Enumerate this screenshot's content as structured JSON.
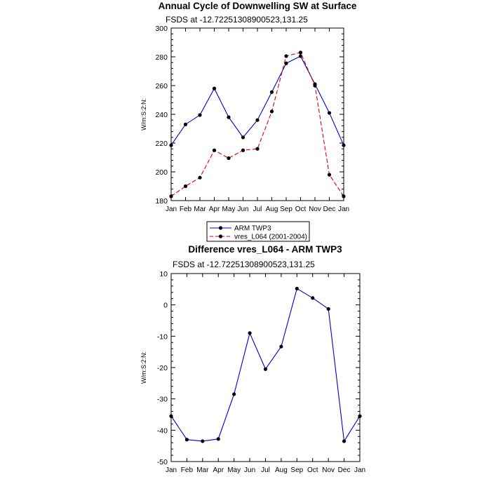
{
  "chart_data": [
    {
      "type": "line",
      "title": "Annual Cycle of Downwelling SW at Surface",
      "subtitle": "FSDS at -12.72251308900523,131.25",
      "ylabel": "W/m:S:2:N:",
      "xlabel": "",
      "categories": [
        "Jan",
        "Feb",
        "Mar",
        "Apr",
        "May",
        "Jun",
        "Jul",
        "Aug",
        "Sep",
        "Oct",
        "Nov",
        "Dec",
        "Jan"
      ],
      "ylim": [
        180,
        300
      ],
      "yticks": [
        180,
        200,
        220,
        240,
        260,
        280,
        300
      ],
      "legend_position": "bottom-center",
      "series": [
        {
          "name": "ARM TWP3",
          "color": "#0000cc",
          "dash": "solid",
          "values": [
            218.5,
            233,
            239.5,
            258,
            238,
            224,
            236,
            255.5,
            275.5,
            280.5,
            261,
            241,
            218.5
          ]
        },
        {
          "name": "vres_L064 (2001-2004)",
          "color": "#dd0000",
          "dash": "dashed",
          "values": [
            183,
            190,
            196,
            215,
            209.5,
            215,
            216,
            242,
            280.5,
            283,
            260,
            198,
            183
          ]
        }
      ]
    },
    {
      "type": "line",
      "title": "Difference vres_L064 - ARM TWP3",
      "subtitle": "FSDS at -12.72251308900523,131.25",
      "ylabel": "W/m:S:2:N:",
      "xlabel": "",
      "categories": [
        "Jan",
        "Feb",
        "Mar",
        "Apr",
        "May",
        "Jun",
        "Jul",
        "Aug",
        "Sep",
        "Oct",
        "Nov",
        "Dec",
        "Jan"
      ],
      "ylim": [
        -50,
        10
      ],
      "yticks": [
        -50,
        -40,
        -30,
        -20,
        -10,
        0,
        10
      ],
      "series": [
        {
          "color": "#0000cc",
          "dash": "solid",
          "values": [
            -35.5,
            -43,
            -43.5,
            -42.8,
            -28.5,
            -9,
            -20.5,
            -13.3,
            5.2,
            2.2,
            -1.3,
            -43.5,
            -35.5
          ]
        }
      ]
    }
  ]
}
